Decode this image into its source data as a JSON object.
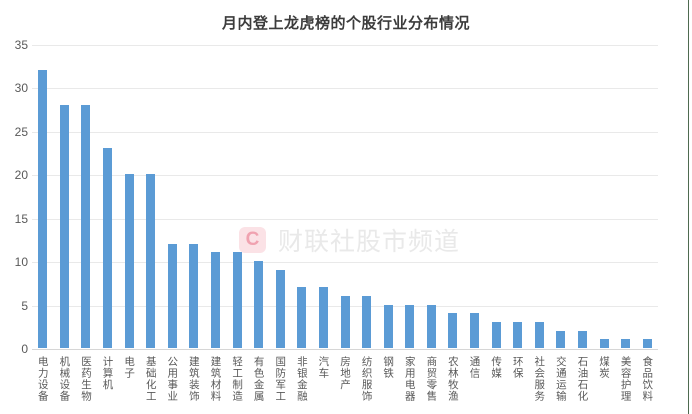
{
  "page": {
    "background": "#ffffff",
    "right_border_color": "#4e6a50"
  },
  "chart_data": {
    "type": "bar",
    "title": "月内登上龙虎榜的个股行业分布情况",
    "categories": [
      "电力设备",
      "机械设备",
      "医药生物",
      "计算机",
      "电子",
      "基础化工",
      "公用事业",
      "建筑装饰",
      "建筑材料",
      "轻工制造",
      "有色金属",
      "国防军工",
      "非银金融",
      "汽车",
      "房地产",
      "纺织服饰",
      "钢铁",
      "家用电器",
      "商贸零售",
      "农林牧渔",
      "通信",
      "传媒",
      "环保",
      "社会服务",
      "交通运输",
      "石油石化",
      "煤炭",
      "美容护理",
      "食品饮料"
    ],
    "values": [
      32,
      28,
      28,
      23,
      20,
      20,
      12,
      12,
      11,
      11,
      10,
      9,
      7,
      7,
      6,
      6,
      5,
      5,
      5,
      4,
      4,
      3,
      3,
      3,
      2,
      2,
      1,
      1,
      1
    ],
    "xlabel": "",
    "ylabel": "",
    "ylim": [
      0,
      35
    ],
    "yticks": [
      0,
      5,
      10,
      15,
      20,
      25,
      30,
      35
    ],
    "grid": "horizontal",
    "legend": "none",
    "bar_color": "#5b9bd5",
    "gridline_color": "#e9e9e9",
    "axis_line_color": "#d6d6d6",
    "tick_label_color": "#595959",
    "title_color": "#3c3c3c"
  },
  "watermark": {
    "logo_letter": "C",
    "text": "财联社股市频道",
    "logo_bg": "#fbe2e6",
    "logo_color": "#f0a2b0",
    "text_color": "#e9e9e9"
  }
}
